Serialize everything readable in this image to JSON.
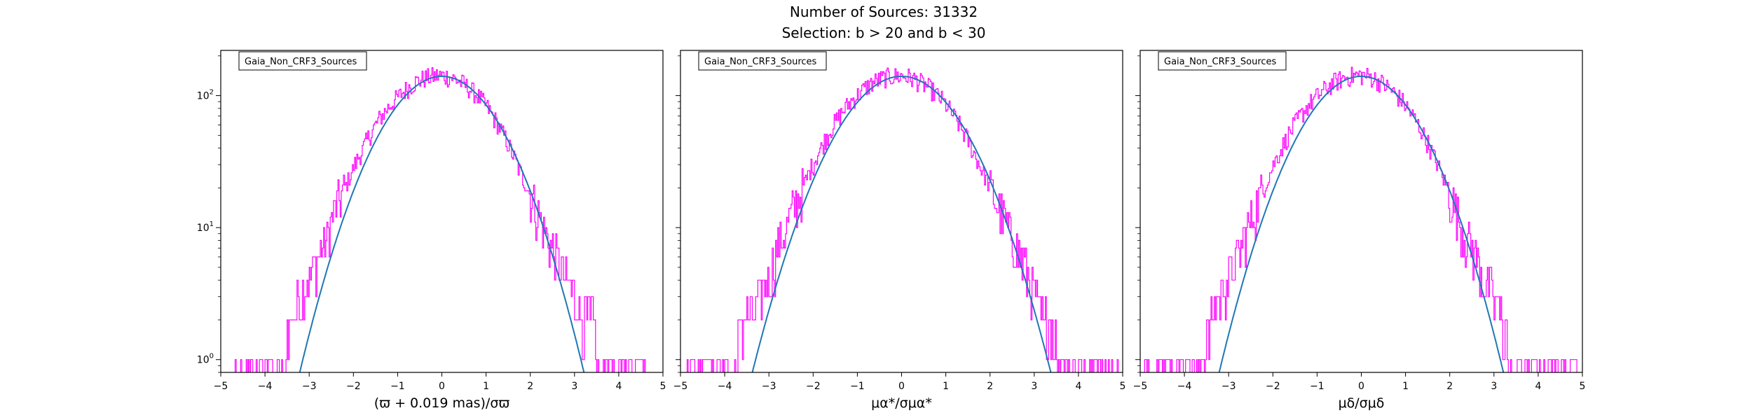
{
  "figure": {
    "title_line1": "Number of Sources: 31332",
    "title_line2": "Selection: b > 20 and b < 30"
  },
  "colors": {
    "histogram": "#ff00ff",
    "gaussian_fit": "#1f77b4",
    "axes": "#000000",
    "background": "#ffffff"
  },
  "chart_data": [
    {
      "type": "line",
      "subtype": "step-histogram with gaussian fit, log y",
      "legend": "Gaia_Non_CRF3_Sources",
      "legend_position": "top-left",
      "xlabel": "(ϖ + 0.019 mas)/σϖ",
      "xlim": [
        -5,
        5
      ],
      "ylim": [
        0.8,
        220
      ],
      "yscale": "log",
      "xticks": [
        "−5",
        "−4",
        "−3",
        "−2",
        "−1",
        "0",
        "1",
        "2",
        "3",
        "4",
        "5"
      ],
      "yticks": [
        {
          "base": "10",
          "exp": "0",
          "value": 1
        },
        {
          "base": "10",
          "exp": "1",
          "value": 10
        },
        {
          "base": "10",
          "exp": "2",
          "value": 100
        }
      ],
      "grid": false,
      "series": [
        {
          "kind": "gaussian_fit",
          "amplitude": 140,
          "mean": 0,
          "sigma": 1.0
        },
        {
          "kind": "histogram",
          "bin_width": 0.025,
          "x": [
            -4.6,
            -4.0,
            -3.8,
            -3.6,
            -3.4,
            -3.2,
            -3.0,
            -2.8,
            -2.6,
            -2.4,
            -2.2,
            -2.0,
            -1.8,
            -1.6,
            -1.4,
            -1.2,
            -1.0,
            -0.8,
            -0.6,
            -0.4,
            -0.2,
            0.0,
            0.2,
            0.4,
            0.6,
            0.8,
            1.0,
            1.2,
            1.4,
            1.6,
            1.8,
            2.0,
            2.2,
            2.4,
            2.6,
            2.8,
            3.0,
            3.2,
            3.4,
            3.6,
            3.8,
            4.0,
            4.5
          ],
          "y": [
            1,
            1,
            1,
            1,
            2,
            3,
            4,
            6,
            8,
            14,
            19,
            28,
            38,
            52,
            67,
            82,
            96,
            112,
            126,
            135,
            140,
            142,
            138,
            128,
            115,
            100,
            84,
            66,
            50,
            36,
            25,
            18,
            12,
            8,
            6,
            4,
            3,
            2,
            2,
            1,
            1,
            1,
            1
          ]
        }
      ]
    },
    {
      "type": "line",
      "subtype": "step-histogram with gaussian fit, log y",
      "legend": "Gaia_Non_CRF3_Sources",
      "legend_position": "top-left",
      "xlabel": "μα*/σμα*",
      "xlim": [
        -5,
        5
      ],
      "ylim": [
        0.8,
        220
      ],
      "yscale": "log",
      "xticks": [
        "−5",
        "−4",
        "−3",
        "−2",
        "−1",
        "0",
        "1",
        "2",
        "3",
        "4",
        "5"
      ],
      "grid": false,
      "series": [
        {
          "kind": "gaussian_fit",
          "amplitude": 140,
          "mean": 0,
          "sigma": 1.05
        },
        {
          "kind": "histogram",
          "bin_width": 0.025,
          "x": [
            -4.8,
            -4.2,
            -3.8,
            -3.6,
            -3.4,
            -3.2,
            -3.0,
            -2.8,
            -2.6,
            -2.4,
            -2.2,
            -2.0,
            -1.8,
            -1.6,
            -1.4,
            -1.2,
            -1.0,
            -0.8,
            -0.6,
            -0.4,
            -0.2,
            0.0,
            0.2,
            0.4,
            0.6,
            0.8,
            1.0,
            1.2,
            1.4,
            1.6,
            1.8,
            2.0,
            2.2,
            2.4,
            2.6,
            2.8,
            3.0,
            3.2,
            3.4,
            3.6,
            3.8,
            4.2,
            4.8
          ],
          "y": [
            1,
            1,
            1,
            2,
            2,
            3,
            4,
            7,
            10,
            15,
            21,
            30,
            41,
            55,
            70,
            86,
            100,
            115,
            128,
            136,
            140,
            141,
            137,
            128,
            116,
            101,
            86,
            68,
            53,
            39,
            28,
            20,
            14,
            10,
            7,
            5,
            3,
            2,
            2,
            1,
            1,
            1,
            1
          ]
        }
      ]
    },
    {
      "type": "line",
      "subtype": "step-histogram with gaussian fit, log y",
      "legend": "Gaia_Non_CRF3_Sources",
      "legend_position": "top-left",
      "xlabel": "μδ/σμδ",
      "xlim": [
        -5,
        5
      ],
      "ylim": [
        0.8,
        220
      ],
      "yscale": "log",
      "xticks": [
        "−5",
        "−4",
        "−3",
        "−2",
        "−1",
        "0",
        "1",
        "2",
        "3",
        "4",
        "5"
      ],
      "grid": false,
      "series": [
        {
          "kind": "gaussian_fit",
          "amplitude": 140,
          "mean": 0,
          "sigma": 1.0
        },
        {
          "kind": "histogram",
          "bin_width": 0.025,
          "x": [
            -4.8,
            -4.3,
            -3.9,
            -3.6,
            -3.4,
            -3.2,
            -3.0,
            -2.8,
            -2.6,
            -2.4,
            -2.2,
            -2.0,
            -1.8,
            -1.6,
            -1.4,
            -1.2,
            -1.0,
            -0.8,
            -0.6,
            -0.4,
            -0.2,
            0.0,
            0.2,
            0.4,
            0.6,
            0.8,
            1.0,
            1.2,
            1.4,
            1.6,
            1.8,
            2.0,
            2.2,
            2.4,
            2.6,
            2.8,
            3.0,
            3.2,
            3.4,
            3.6,
            3.9,
            4.3,
            4.8
          ],
          "y": [
            1,
            1,
            1,
            1,
            2,
            3,
            4,
            6,
            9,
            14,
            20,
            29,
            40,
            53,
            68,
            84,
            98,
            113,
            127,
            136,
            141,
            143,
            139,
            129,
            116,
            101,
            85,
            67,
            51,
            37,
            26,
            18,
            12,
            8,
            6,
            4,
            3,
            2,
            1,
            1,
            1,
            1,
            1
          ]
        }
      ]
    }
  ]
}
